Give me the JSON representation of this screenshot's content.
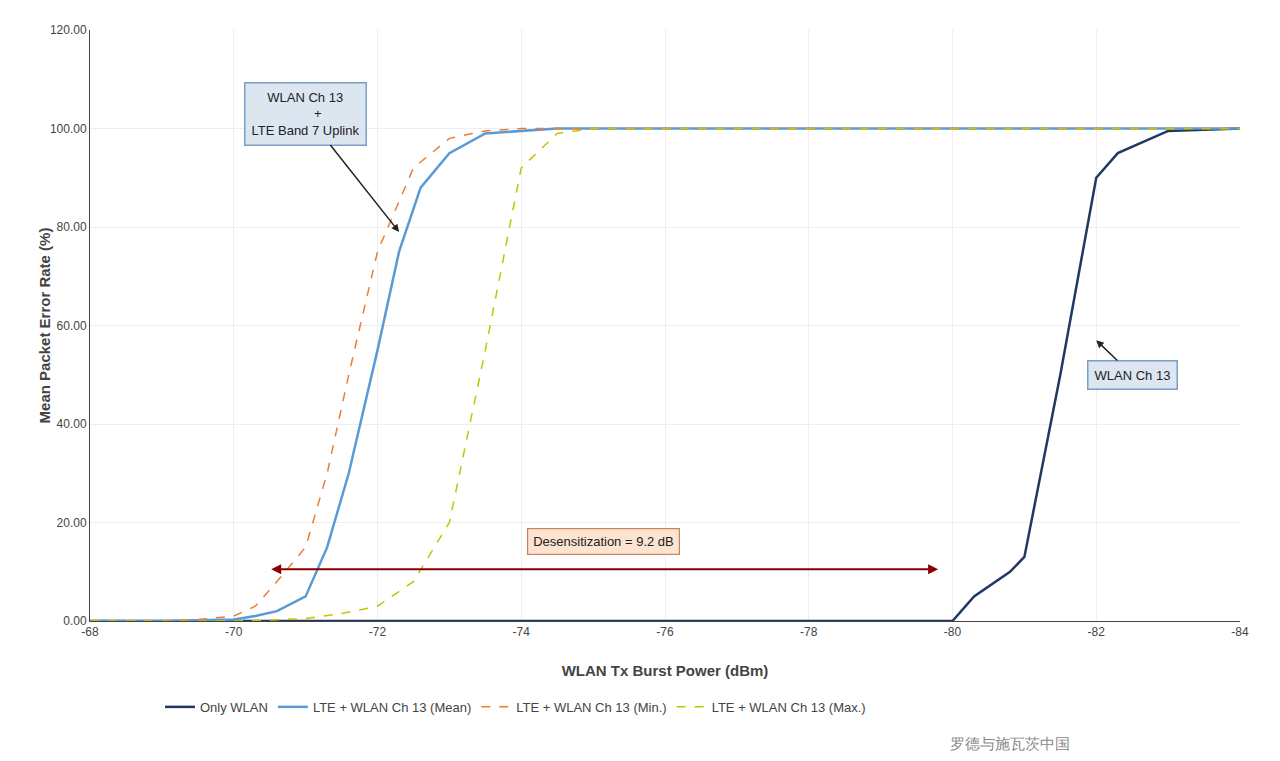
{
  "chart_data": {
    "type": "line",
    "xlabel": "WLAN Tx Burst Power (dBm)",
    "ylabel": "Mean Packet Error Rate (%)",
    "xlim": [
      -68,
      -84
    ],
    "ylim": [
      0,
      120
    ],
    "xticks": [
      -68,
      -70,
      -72,
      -74,
      -76,
      -78,
      -80,
      -82,
      -84
    ],
    "yticks": [
      {
        "value": 0.0,
        "label": "0.00"
      },
      {
        "value": 20.0,
        "label": "20.00"
      },
      {
        "value": 40.0,
        "label": "40.00"
      },
      {
        "value": 60.0,
        "label": "60.00"
      },
      {
        "value": 80.0,
        "label": "80.00"
      },
      {
        "value": 100.0,
        "label": "100.00"
      },
      {
        "value": 120.0,
        "label": "120.00"
      }
    ],
    "grid": true,
    "legend": "bottom",
    "series": [
      {
        "name": "Only WLAN",
        "color": "#1f3864",
        "line_style": "solid",
        "x": [
          -68,
          -69,
          -70,
          -70.2,
          -70.5,
          -71,
          -79,
          -80,
          -80.3,
          -80.8,
          -81,
          -81.5,
          -82,
          -82.3,
          -83,
          -84
        ],
        "values": [
          0,
          0,
          0,
          0,
          0,
          0,
          0,
          0,
          5,
          10,
          13,
          50,
          90,
          95,
          99.5,
          100
        ]
      },
      {
        "name": "LTE + WLAN Ch 13 (Mean)",
        "color": "#5b9bd5",
        "line_style": "solid",
        "x": [
          -68,
          -69,
          -70,
          -70.3,
          -70.6,
          -71,
          -71.3,
          -71.6,
          -72,
          -72.3,
          -72.6,
          -73,
          -73.5,
          -74,
          -74.5,
          -75,
          -76,
          -77,
          -84
        ],
        "values": [
          0,
          0,
          0.3,
          1,
          2,
          5,
          15,
          30,
          55,
          75,
          88,
          95,
          99,
          99.5,
          100,
          100,
          100,
          100,
          100
        ]
      },
      {
        "name": "LTE + WLAN Ch 13 (Min.)",
        "color": "#ed7d31",
        "line_style": "dashed",
        "x": [
          -68,
          -69,
          -69.5,
          -70,
          -70.3,
          -70.6,
          -71,
          -71.3,
          -71.6,
          -72,
          -72.5,
          -73,
          -73.5,
          -74,
          -75,
          -84
        ],
        "values": [
          0,
          0,
          0.3,
          1,
          3,
          8,
          15,
          30,
          50,
          75,
          92,
          98,
          99.5,
          100,
          100,
          100
        ]
      },
      {
        "name": "LTE + WLAN Ch 13 (Max.)",
        "color": "#c4c400",
        "line_style": "dashed",
        "x": [
          -68,
          -69,
          -70,
          -70.5,
          -71,
          -71.5,
          -72,
          -72.5,
          -73,
          -73.5,
          -74,
          -74.5,
          -75,
          -76,
          -84
        ],
        "values": [
          0,
          0,
          0,
          0.2,
          0.5,
          1.5,
          3,
          8,
          20,
          55,
          92,
          99,
          100,
          100,
          100
        ]
      }
    ],
    "annotations": [
      {
        "text": "WLAN Ch 13\n       +\nLTE Band 7 Uplink",
        "x": -71.0,
        "y": 103,
        "arrow_x": -72.3,
        "arrow_y": 79
      },
      {
        "text": "WLAN Ch 13",
        "x": -82.5,
        "y": 50,
        "arrow_x": -82.0,
        "arrow_y": 57
      },
      {
        "text": "Desensitization = 9.2 dB",
        "x_from": -70.5,
        "x_to": -79.8,
        "y": 10.5
      }
    ],
    "watermark": "罗德与施瓦茨中国"
  }
}
